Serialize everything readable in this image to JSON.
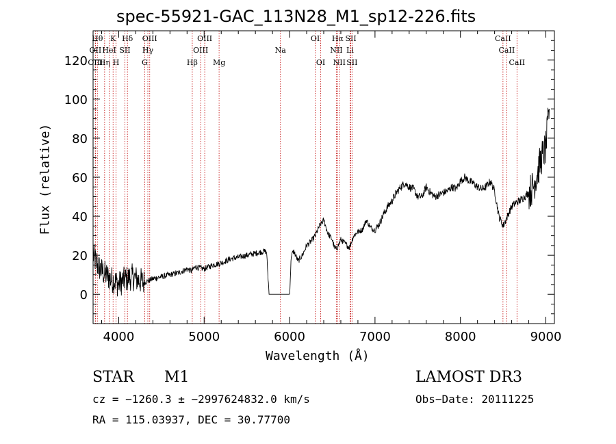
{
  "chart_data": {
    "type": "line",
    "title": "spec-55921-GAC_113N28_M1_sp12-226.fits",
    "xlabel": "Wavelength (Å)",
    "ylabel": "Flux (relative)",
    "xlim": [
      3700,
      9100
    ],
    "ylim": [
      -15,
      135
    ],
    "xticks": [
      4000,
      5000,
      6000,
      7000,
      8000,
      9000
    ],
    "yticks": [
      0,
      20,
      40,
      60,
      80,
      100,
      120
    ],
    "series": [
      {
        "name": "spectrum",
        "x": [
          3700,
          3750,
          3800,
          3850,
          3900,
          3950,
          4000,
          4050,
          4100,
          4150,
          4200,
          4250,
          4300,
          4350,
          4400,
          4500,
          4600,
          4700,
          4800,
          4850,
          4900,
          5000,
          5100,
          5200,
          5300,
          5400,
          5500,
          5600,
          5700,
          5730,
          5760,
          5800,
          5900,
          6000,
          6020,
          6050,
          6100,
          6150,
          6200,
          6250,
          6300,
          6350,
          6400,
          6450,
          6500,
          6530,
          6560,
          6600,
          6650,
          6700,
          6750,
          6800,
          6850,
          6900,
          6950,
          7000,
          7050,
          7100,
          7150,
          7200,
          7250,
          7300,
          7350,
          7400,
          7450,
          7500,
          7550,
          7600,
          7650,
          7700,
          7750,
          7800,
          7850,
          7900,
          7950,
          8000,
          8050,
          8100,
          8150,
          8200,
          8250,
          8300,
          8350,
          8400,
          8450,
          8500,
          8550,
          8600,
          8650,
          8700,
          8750,
          8800,
          8850,
          8900,
          8950,
          9000,
          9040
        ],
        "y": [
          20,
          15,
          12,
          10,
          8,
          7,
          5,
          7,
          8,
          9,
          8,
          7,
          6,
          7,
          8,
          9,
          10,
          11,
          13,
          12,
          14,
          13,
          15,
          16,
          18,
          19,
          20,
          21,
          22,
          22,
          0,
          0,
          0,
          0,
          20,
          22,
          17,
          20,
          25,
          27,
          30,
          35,
          38,
          31,
          28,
          23,
          24,
          28,
          26,
          24,
          30,
          32,
          33,
          38,
          34,
          33,
          36,
          41,
          45,
          48,
          52,
          55,
          57,
          55,
          54,
          50,
          50,
          55,
          52,
          50,
          51,
          52,
          53,
          55,
          54,
          58,
          60,
          58,
          57,
          55,
          54,
          55,
          58,
          53,
          40,
          35,
          40,
          45,
          47,
          48,
          50,
          52,
          55,
          62,
          70,
          75,
          95
        ]
      }
    ],
    "lines": [
      {
        "wl": 3750,
        "label": "Hθ",
        "row": 1
      },
      {
        "wl": 3727,
        "label": "OII",
        "row": 2
      },
      {
        "wl": 3727,
        "label": "OIII",
        "row": 3
      },
      {
        "wl": 3835,
        "label": "Hη",
        "row": 3
      },
      {
        "wl": 3889,
        "label": "HeI",
        "row": 2
      },
      {
        "wl": 3934,
        "label": "K",
        "row": 1
      },
      {
        "wl": 3969,
        "label": "H",
        "row": 3
      },
      {
        "wl": 4072,
        "label": "SII",
        "row": 2
      },
      {
        "wl": 4102,
        "label": "Hδ",
        "row": 1
      },
      {
        "wl": 4304,
        "label": "G",
        "row": 3
      },
      {
        "wl": 4341,
        "label": "Hγ",
        "row": 2
      },
      {
        "wl": 4363,
        "label": "OIII",
        "row": 1
      },
      {
        "wl": 4861,
        "label": "Hβ",
        "row": 3
      },
      {
        "wl": 4959,
        "label": "OIII",
        "row": 2
      },
      {
        "wl": 5007,
        "label": "OIII",
        "row": 1
      },
      {
        "wl": 5175,
        "label": "Mg",
        "row": 3
      },
      {
        "wl": 5893,
        "label": "Na",
        "row": 2
      },
      {
        "wl": 6300,
        "label": "OI",
        "row": 1
      },
      {
        "wl": 6364,
        "label": "OI",
        "row": 3
      },
      {
        "wl": 6548,
        "label": "NII",
        "row": 2
      },
      {
        "wl": 6563,
        "label": "Hα",
        "row": 1
      },
      {
        "wl": 6583,
        "label": "NII",
        "row": 3
      },
      {
        "wl": 6708,
        "label": "Li",
        "row": 2
      },
      {
        "wl": 6717,
        "label": "SII",
        "row": 1
      },
      {
        "wl": 6731,
        "label": "SII",
        "row": 3
      },
      {
        "wl": 8498,
        "label": "CaII",
        "row": 1
      },
      {
        "wl": 8542,
        "label": "CaII",
        "row": 2
      },
      {
        "wl": 8662,
        "label": "CaII",
        "row": 3
      }
    ]
  },
  "info": {
    "class": "STAR",
    "subclass": "M1",
    "survey": "LAMOST DR3",
    "cz": "cz = −1260.3 ± −2997624832.0 km/s",
    "obs_date": "Obs−Date: 20111225",
    "coords": "RA = 115.03937, DEC =  30.77700"
  }
}
